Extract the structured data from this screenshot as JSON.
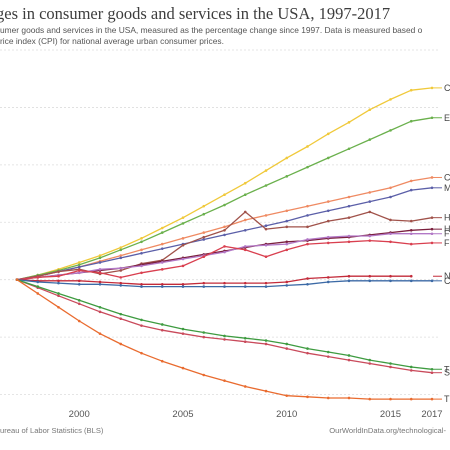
{
  "title": "ges in consumer goods and services in the USA, 1997-2017",
  "subtitle_line1": "umer goods and services in the USA, measured as the percentage change since 1997. Data is measured based o",
  "subtitle_line2": "rice index (CPI) for national average urban consumer prices.",
  "source": "ureau of Labor Statistics (BLS)",
  "credit": "OurWorldInData.org/technological-",
  "chart_data": {
    "type": "line",
    "xlim": [
      1997,
      2017
    ],
    "ylim": [
      -110,
      200
    ],
    "x_ticks": [
      2000,
      2005,
      2010,
      2015,
      2017
    ],
    "grid": true,
    "series": [
      {
        "name": "C",
        "color": "#f0c93a",
        "points": [
          [
            1997,
            0
          ],
          [
            1998,
            4
          ],
          [
            1999,
            9
          ],
          [
            2000,
            15
          ],
          [
            2001,
            21
          ],
          [
            2002,
            28
          ],
          [
            2003,
            36
          ],
          [
            2004,
            45
          ],
          [
            2005,
            54
          ],
          [
            2006,
            64
          ],
          [
            2007,
            74
          ],
          [
            2008,
            84
          ],
          [
            2009,
            95
          ],
          [
            2010,
            106
          ],
          [
            2011,
            116
          ],
          [
            2012,
            127
          ],
          [
            2013,
            137
          ],
          [
            2014,
            148
          ],
          [
            2015,
            157
          ],
          [
            2016,
            165
          ],
          [
            2017,
            167
          ]
        ]
      },
      {
        "name": "E",
        "color": "#6ab04c",
        "points": [
          [
            1997,
            0
          ],
          [
            1998,
            4
          ],
          [
            1999,
            8
          ],
          [
            2000,
            13
          ],
          [
            2001,
            19
          ],
          [
            2002,
            26
          ],
          [
            2003,
            33
          ],
          [
            2004,
            41
          ],
          [
            2005,
            49
          ],
          [
            2006,
            57
          ],
          [
            2007,
            65
          ],
          [
            2008,
            74
          ],
          [
            2009,
            82
          ],
          [
            2010,
            90
          ],
          [
            2011,
            98
          ],
          [
            2012,
            106
          ],
          [
            2013,
            114
          ],
          [
            2014,
            122
          ],
          [
            2015,
            130
          ],
          [
            2016,
            138
          ],
          [
            2017,
            141
          ]
        ]
      },
      {
        "name": "C",
        "color": "#ef8a62",
        "points": [
          [
            1997,
            0
          ],
          [
            1998,
            3
          ],
          [
            1999,
            7
          ],
          [
            2000,
            11
          ],
          [
            2001,
            16
          ],
          [
            2002,
            21
          ],
          [
            2003,
            26
          ],
          [
            2004,
            31
          ],
          [
            2005,
            36
          ],
          [
            2006,
            41
          ],
          [
            2007,
            46
          ],
          [
            2008,
            52
          ],
          [
            2009,
            56
          ],
          [
            2010,
            60
          ],
          [
            2011,
            64
          ],
          [
            2012,
            68
          ],
          [
            2013,
            72
          ],
          [
            2014,
            76
          ],
          [
            2015,
            80
          ],
          [
            2016,
            86
          ],
          [
            2017,
            89
          ]
        ]
      },
      {
        "name": "M",
        "color": "#5b5fa8",
        "points": [
          [
            1997,
            0
          ],
          [
            1998,
            3
          ],
          [
            1999,
            7
          ],
          [
            2000,
            11
          ],
          [
            2001,
            15
          ],
          [
            2002,
            19
          ],
          [
            2003,
            23
          ],
          [
            2004,
            27
          ],
          [
            2005,
            31
          ],
          [
            2006,
            35
          ],
          [
            2007,
            39
          ],
          [
            2008,
            43
          ],
          [
            2009,
            47
          ],
          [
            2010,
            51
          ],
          [
            2011,
            56
          ],
          [
            2012,
            60
          ],
          [
            2013,
            64
          ],
          [
            2014,
            68
          ],
          [
            2015,
            72
          ],
          [
            2016,
            78
          ],
          [
            2017,
            80
          ]
        ]
      },
      {
        "name": "H",
        "color": "#a0524a",
        "points": [
          [
            1997,
            0
          ],
          [
            1998,
            3
          ],
          [
            1999,
            7
          ],
          [
            2000,
            9
          ],
          [
            2001,
            5
          ],
          [
            2002,
            8
          ],
          [
            2003,
            14
          ],
          [
            2004,
            17
          ],
          [
            2005,
            30
          ],
          [
            2006,
            37
          ],
          [
            2007,
            43
          ],
          [
            2008,
            59
          ],
          [
            2009,
            44
          ],
          [
            2010,
            46
          ],
          [
            2011,
            46
          ],
          [
            2012,
            51
          ],
          [
            2013,
            54
          ],
          [
            2014,
            59
          ],
          [
            2015,
            52
          ],
          [
            2016,
            51
          ],
          [
            2017,
            54
          ]
        ]
      },
      {
        "name": "H",
        "color": "#7a1f3d",
        "points": [
          [
            1997,
            0
          ],
          [
            1998,
            2
          ],
          [
            1999,
            4
          ],
          [
            2000,
            6
          ],
          [
            2001,
            8
          ],
          [
            2002,
            10
          ],
          [
            2003,
            13
          ],
          [
            2004,
            16
          ],
          [
            2005,
            19
          ],
          [
            2006,
            22
          ],
          [
            2007,
            25
          ],
          [
            2008,
            28
          ],
          [
            2009,
            31
          ],
          [
            2010,
            33
          ],
          [
            2011,
            34
          ],
          [
            2012,
            36
          ],
          [
            2013,
            37
          ],
          [
            2014,
            39
          ],
          [
            2015,
            41
          ],
          [
            2016,
            43
          ],
          [
            2017,
            44
          ]
        ]
      },
      {
        "name": "F",
        "color": "#b278c6",
        "points": [
          [
            1997,
            0
          ],
          [
            1998,
            2
          ],
          [
            1999,
            4
          ],
          [
            2000,
            6
          ],
          [
            2001,
            9
          ],
          [
            2002,
            10
          ],
          [
            2003,
            12
          ],
          [
            2004,
            15
          ],
          [
            2005,
            18
          ],
          [
            2006,
            21
          ],
          [
            2007,
            24
          ],
          [
            2008,
            29
          ],
          [
            2009,
            30
          ],
          [
            2010,
            31
          ],
          [
            2011,
            35
          ],
          [
            2012,
            37
          ],
          [
            2013,
            38
          ],
          [
            2014,
            38
          ],
          [
            2015,
            40
          ],
          [
            2016,
            40
          ],
          [
            2017,
            40
          ]
        ]
      },
      {
        "name": "F",
        "color": "#d93f4f",
        "points": [
          [
            1997,
            0
          ],
          [
            1998,
            2
          ],
          [
            1999,
            3
          ],
          [
            2000,
            8
          ],
          [
            2001,
            6
          ],
          [
            2002,
            2
          ],
          [
            2003,
            6
          ],
          [
            2004,
            9
          ],
          [
            2005,
            12
          ],
          [
            2006,
            20
          ],
          [
            2007,
            29
          ],
          [
            2008,
            26
          ],
          [
            2009,
            20
          ],
          [
            2010,
            26
          ],
          [
            2011,
            31
          ],
          [
            2012,
            32
          ],
          [
            2013,
            33
          ],
          [
            2014,
            34
          ],
          [
            2015,
            33
          ],
          [
            2016,
            31
          ],
          [
            2017,
            32
          ]
        ]
      },
      {
        "name": "N",
        "color": "#c32b3a",
        "points": [
          [
            1997,
            0
          ],
          [
            1998,
            -1
          ],
          [
            1999,
            -1
          ],
          [
            2000,
            -1
          ],
          [
            2001,
            -2
          ],
          [
            2002,
            -3
          ],
          [
            2003,
            -4
          ],
          [
            2004,
            -4
          ],
          [
            2005,
            -4
          ],
          [
            2006,
            -3
          ],
          [
            2007,
            -3
          ],
          [
            2008,
            -3
          ],
          [
            2009,
            -3
          ],
          [
            2010,
            -2
          ],
          [
            2011,
            1
          ],
          [
            2012,
            2
          ],
          [
            2013,
            3
          ],
          [
            2014,
            3
          ],
          [
            2015,
            3
          ],
          [
            2016,
            3
          ]
        ]
      },
      {
        "name": "C",
        "color": "#3c6aa6",
        "points": [
          [
            1997,
            0
          ],
          [
            1998,
            -2
          ],
          [
            1999,
            -3
          ],
          [
            2000,
            -4
          ],
          [
            2001,
            -4
          ],
          [
            2002,
            -5
          ],
          [
            2003,
            -6
          ],
          [
            2004,
            -6
          ],
          [
            2005,
            -6
          ],
          [
            2006,
            -6
          ],
          [
            2007,
            -6
          ],
          [
            2008,
            -6
          ],
          [
            2009,
            -6
          ],
          [
            2010,
            -5
          ],
          [
            2011,
            -4
          ],
          [
            2012,
            -2
          ],
          [
            2013,
            -1
          ],
          [
            2014,
            -1
          ],
          [
            2015,
            -1
          ],
          [
            2016,
            -1
          ],
          [
            2017,
            -1
          ]
        ]
      },
      {
        "name": "S",
        "color": "#c94a5b",
        "points": [
          [
            1997,
            0
          ],
          [
            1998,
            -7
          ],
          [
            1999,
            -14
          ],
          [
            2000,
            -21
          ],
          [
            2001,
            -28
          ],
          [
            2002,
            -34
          ],
          [
            2003,
            -40
          ],
          [
            2004,
            -44
          ],
          [
            2005,
            -47
          ],
          [
            2006,
            -50
          ],
          [
            2007,
            -52
          ],
          [
            2008,
            -54
          ],
          [
            2009,
            -56
          ],
          [
            2010,
            -60
          ],
          [
            2011,
            -64
          ],
          [
            2012,
            -67
          ],
          [
            2013,
            -70
          ],
          [
            2014,
            -73
          ],
          [
            2015,
            -76
          ],
          [
            2016,
            -79
          ],
          [
            2017,
            -81
          ]
        ]
      },
      {
        "name": "T",
        "color": "#3e9b40",
        "points": [
          [
            1997,
            0
          ],
          [
            1998,
            -6
          ],
          [
            1999,
            -12
          ],
          [
            2000,
            -18
          ],
          [
            2001,
            -24
          ],
          [
            2002,
            -30
          ],
          [
            2003,
            -35
          ],
          [
            2004,
            -39
          ],
          [
            2005,
            -43
          ],
          [
            2006,
            -46
          ],
          [
            2007,
            -49
          ],
          [
            2008,
            -51
          ],
          [
            2009,
            -53
          ],
          [
            2010,
            -56
          ],
          [
            2011,
            -60
          ],
          [
            2012,
            -63
          ],
          [
            2013,
            -66
          ],
          [
            2014,
            -70
          ],
          [
            2015,
            -73
          ],
          [
            2016,
            -76
          ],
          [
            2017,
            -78
          ]
        ]
      },
      {
        "name": "T",
        "color": "#e96b2f",
        "points": [
          [
            1997,
            0
          ],
          [
            1998,
            -12
          ],
          [
            1999,
            -24
          ],
          [
            2000,
            -36
          ],
          [
            2001,
            -47
          ],
          [
            2002,
            -56
          ],
          [
            2003,
            -64
          ],
          [
            2004,
            -71
          ],
          [
            2005,
            -77
          ],
          [
            2006,
            -83
          ],
          [
            2007,
            -88
          ],
          [
            2008,
            -93
          ],
          [
            2009,
            -97
          ],
          [
            2010,
            -101
          ],
          [
            2011,
            -102
          ],
          [
            2012,
            -103
          ],
          [
            2013,
            -103
          ],
          [
            2014,
            -104
          ],
          [
            2015,
            -104
          ],
          [
            2016,
            -104
          ],
          [
            2017,
            -104
          ]
        ]
      }
    ]
  }
}
